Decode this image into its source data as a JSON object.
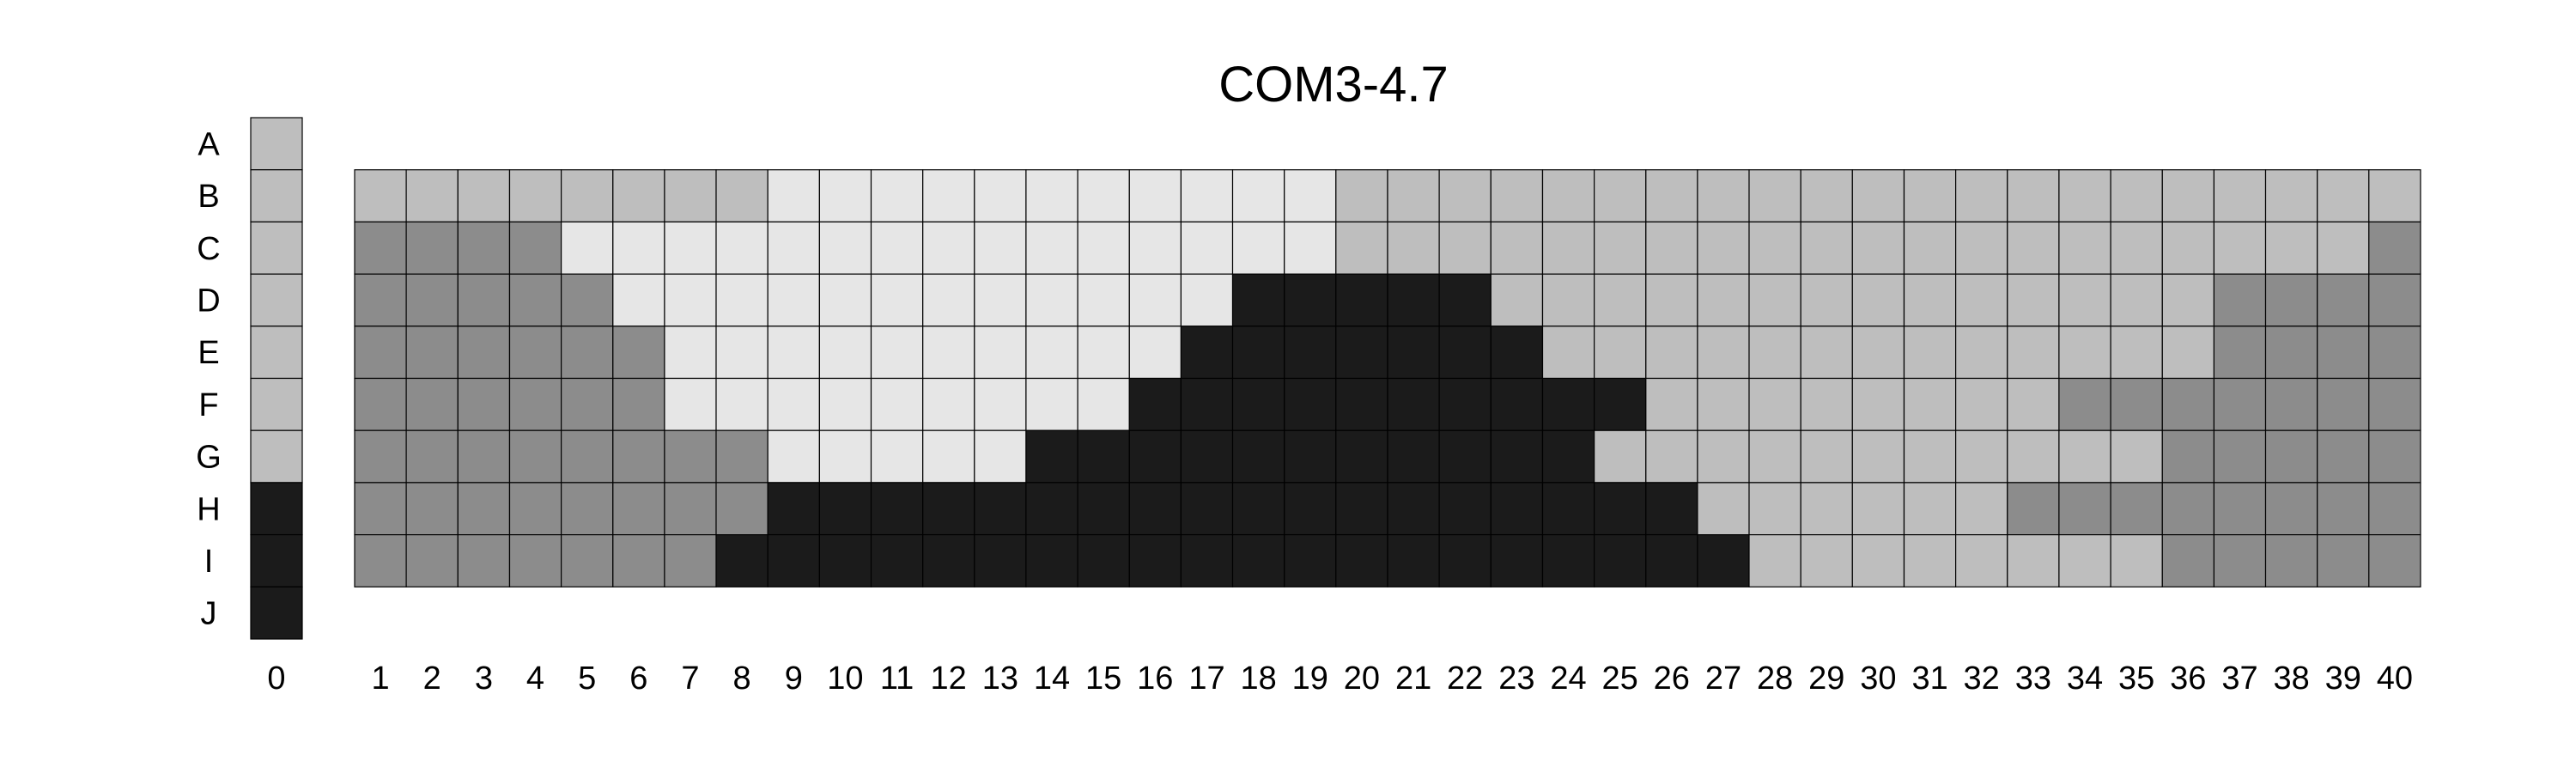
{
  "chart_data": {
    "type": "heatmap",
    "title": "COM3-4.7",
    "row_labels": [
      "A",
      "B",
      "C",
      "D",
      "E",
      "F",
      "G",
      "H",
      "I",
      "J"
    ],
    "col_labels": [
      "1",
      "2",
      "3",
      "4",
      "5",
      "6",
      "7",
      "8",
      "9",
      "10",
      "11",
      "12",
      "13",
      "14",
      "15",
      "16",
      "17",
      "18",
      "19",
      "20",
      "21",
      "22",
      "23",
      "24",
      "25",
      "26",
      "27",
      "28",
      "29",
      "30",
      "31",
      "32",
      "33",
      "34",
      "35",
      "36",
      "37",
      "38",
      "39",
      "40"
    ],
    "key_label": "0",
    "key_column": {
      "A": "light-gray",
      "B": "light-gray",
      "C": "light-gray",
      "D": "light-gray",
      "E": "light-gray",
      "F": "light-gray",
      "G": "light-gray",
      "H": "black",
      "I": "black",
      "J": "black"
    },
    "grid_rows": {
      "B": "LLLLLLLLWWWWWWWWWWWLLLLLLLLLLLLLLLLLLLLL",
      "C": "MMMMWWWWWWWWWWWWWWWLLLLLLLLLLLLLLLLLLLLM",
      "D": "MMMMMWWWWWWWWWWWWKKKKKLLLLLLLLLLLLLLMMMM",
      "E": "MMMMMMWWWWWWWWWWKKKKKKKLLLLLLLLLLLLLMMMM",
      "F": "MMMMMMWWWWWWWWWKKKKKKKKKKLLLLLLLLMMMMMMM",
      "G": "MMMMMMMMWWWWWKKKKKKKKKKKLLLLLLLLLLLMMMMM",
      "H": "MMMMMMMMKKKKKKKKKKKKKKKKKKLLLLLLMMMMMMMM",
      "I": "MMMMMMMKKKKKKKKKKKKKKKKKKKKLLLLLLLLMMMMM"
    },
    "legend_codes": {
      "W": "very-light-gray",
      "L": "light-gray",
      "M": "medium-gray",
      "K": "black"
    },
    "colors": {
      "W": "#e6e6e6",
      "L": "#bebebe",
      "M": "#8c8c8c",
      "K": "#1b1b1b",
      "grid_line": "#000000"
    }
  }
}
